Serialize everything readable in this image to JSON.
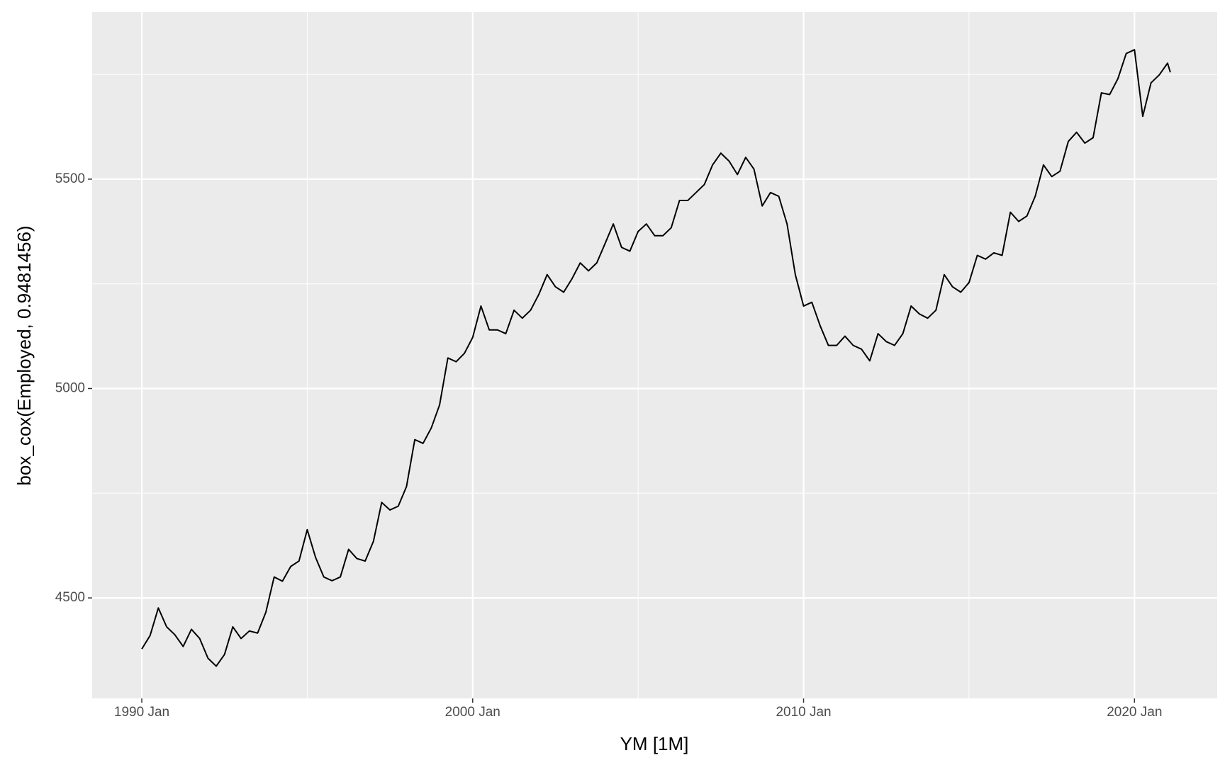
{
  "chart_data": {
    "type": "line",
    "x_label": "YM [1M]",
    "y_label": "box_cox(Employed, 0.9481456)",
    "x": [
      "1990 Jan",
      "1990 Apr",
      "1990 Jul",
      "1990 Oct",
      "1991 Jan",
      "1991 Apr",
      "1991 Jul",
      "1991 Oct",
      "1992 Jan",
      "1992 Apr",
      "1992 Jul",
      "1992 Oct",
      "1993 Jan",
      "1993 Apr",
      "1993 Jul",
      "1993 Oct",
      "1994 Jan",
      "1994 Apr",
      "1994 Jul",
      "1994 Oct",
      "1995 Jan",
      "1995 Apr",
      "1995 Jul",
      "1995 Oct",
      "1996 Jan",
      "1996 Apr",
      "1996 Jul",
      "1996 Oct",
      "1997 Jan",
      "1997 Apr",
      "1997 Jul",
      "1997 Oct",
      "1998 Jan",
      "1998 Apr",
      "1998 Jul",
      "1998 Oct",
      "1999 Jan",
      "1999 Apr",
      "1999 Jul",
      "1999 Oct",
      "2000 Jan",
      "2000 Apr",
      "2000 Jul",
      "2000 Oct",
      "2001 Jan",
      "2001 Apr",
      "2001 Jul",
      "2001 Oct",
      "2002 Jan",
      "2002 Apr",
      "2002 Jul",
      "2002 Oct",
      "2003 Jan",
      "2003 Apr",
      "2003 Jul",
      "2003 Oct",
      "2004 Jan",
      "2004 Apr",
      "2004 Jul",
      "2004 Oct",
      "2005 Jan",
      "2005 Apr",
      "2005 Jul",
      "2005 Oct",
      "2006 Jan",
      "2006 Apr",
      "2006 Jul",
      "2006 Oct",
      "2007 Jan",
      "2007 Apr",
      "2007 Jul",
      "2007 Oct",
      "2008 Jan",
      "2008 Apr",
      "2008 Jul",
      "2008 Oct",
      "2009 Jan",
      "2009 Apr",
      "2009 Jul",
      "2009 Oct",
      "2010 Jan",
      "2010 Apr",
      "2010 Jul",
      "2010 Oct",
      "2011 Jan",
      "2011 Apr",
      "2011 Jul",
      "2011 Oct",
      "2012 Jan",
      "2012 Apr",
      "2012 Jul",
      "2012 Oct",
      "2013 Jan",
      "2013 Apr",
      "2013 Jul",
      "2013 Oct",
      "2014 Jan",
      "2014 Apr",
      "2014 Jul",
      "2014 Oct",
      "2015 Jan",
      "2015 Apr",
      "2015 Jul",
      "2015 Oct",
      "2016 Jan",
      "2016 Apr",
      "2016 Jul",
      "2016 Oct",
      "2017 Jan",
      "2017 Apr",
      "2017 Jul",
      "2017 Oct",
      "2018 Jan",
      "2018 Apr",
      "2018 Jul",
      "2018 Oct",
      "2019 Jan",
      "2019 Apr",
      "2019 Jul",
      "2019 Oct",
      "2020 Jan",
      "2020 Apr",
      "2020 Jul",
      "2020 Oct",
      "2021 Jan",
      "2021 Feb"
    ],
    "series": [
      {
        "name": "box_cox(Employed, 0.9481456)",
        "color": "#000000",
        "values": [
          4378,
          4410,
          4476,
          4431,
          4412,
          4384,
          4425,
          4403,
          4356,
          4337,
          4365,
          4431,
          4403,
          4421,
          4416,
          4466,
          4550,
          4540,
          4575,
          4588,
          4663,
          4597,
          4550,
          4541,
          4550,
          4616,
          4594,
          4588,
          4635,
          4728,
          4710,
          4719,
          4766,
          4878,
          4869,
          4906,
          4961,
          5073,
          5064,
          5084,
          5122,
          5197,
          5140,
          5140,
          5131,
          5187,
          5168,
          5187,
          5225,
          5272,
          5243,
          5230,
          5262,
          5300,
          5281,
          5300,
          5346,
          5393,
          5337,
          5328,
          5375,
          5393,
          5365,
          5365,
          5384,
          5449,
          5449,
          5468,
          5487,
          5534,
          5562,
          5543,
          5511,
          5552,
          5524,
          5436,
          5468,
          5459,
          5393,
          5272,
          5197,
          5206,
          5150,
          5103,
          5103,
          5125,
          5103,
          5094,
          5066,
          5131,
          5112,
          5103,
          5131,
          5197,
          5178,
          5168,
          5187,
          5272,
          5243,
          5230,
          5253,
          5318,
          5309,
          5324,
          5318,
          5421,
          5399,
          5412,
          5459,
          5534,
          5506,
          5519,
          5590,
          5612,
          5586,
          5599,
          5706,
          5702,
          5740,
          5800,
          5809,
          5650,
          5730,
          5749,
          5777,
          5755
        ]
      }
    ],
    "xlim": [
      "1988 Jul",
      "2022 Jul"
    ],
    "xticks": [
      "1990 Jan",
      "2000 Jan",
      "2010 Jan",
      "2020 Jan"
    ],
    "x_minor_grid": [
      "1995 Jan",
      "2005 Jan",
      "2015 Jan"
    ],
    "ylim": [
      4260,
      5899
    ],
    "yticks": [
      4500,
      5000,
      5500
    ],
    "y_minor_grid": [
      4750,
      5250,
      5750
    ],
    "grid": true,
    "panel_color": "#ebebeb"
  }
}
